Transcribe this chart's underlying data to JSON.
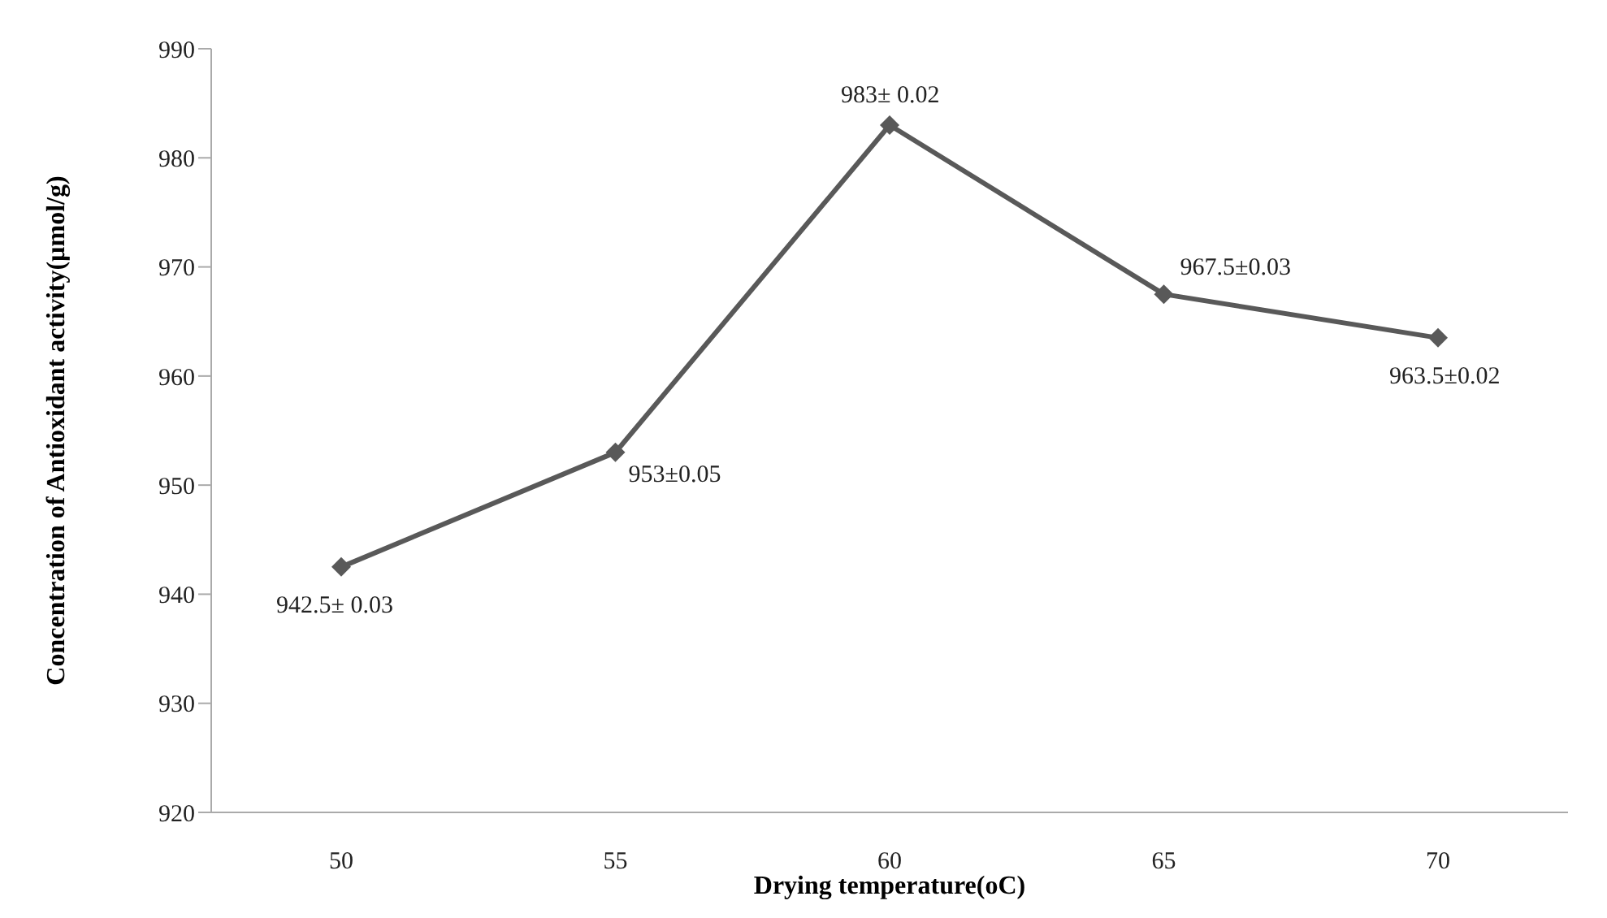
{
  "chart_data": {
    "type": "line",
    "xlabel": "Drying temperature(oC)",
    "ylabel": "Concentration of Antioxidant activity(µmol/g)",
    "categories": [
      "50",
      "55",
      "60",
      "65",
      "70"
    ],
    "series": [
      {
        "color": "#595959",
        "values": [
          942.5,
          953,
          983,
          967.5,
          963.5
        ],
        "value_labels": [
          "942.5± 0.03",
          "953±0.05",
          "983± 0.02",
          "967.5±0.03",
          "963.5±0.02"
        ]
      }
    ],
    "ylim": [
      920,
      990
    ],
    "yticks": [
      920,
      930,
      940,
      950,
      960,
      970,
      980,
      990
    ],
    "grid": false,
    "marker": "diamond",
    "line_style": "solid"
  }
}
